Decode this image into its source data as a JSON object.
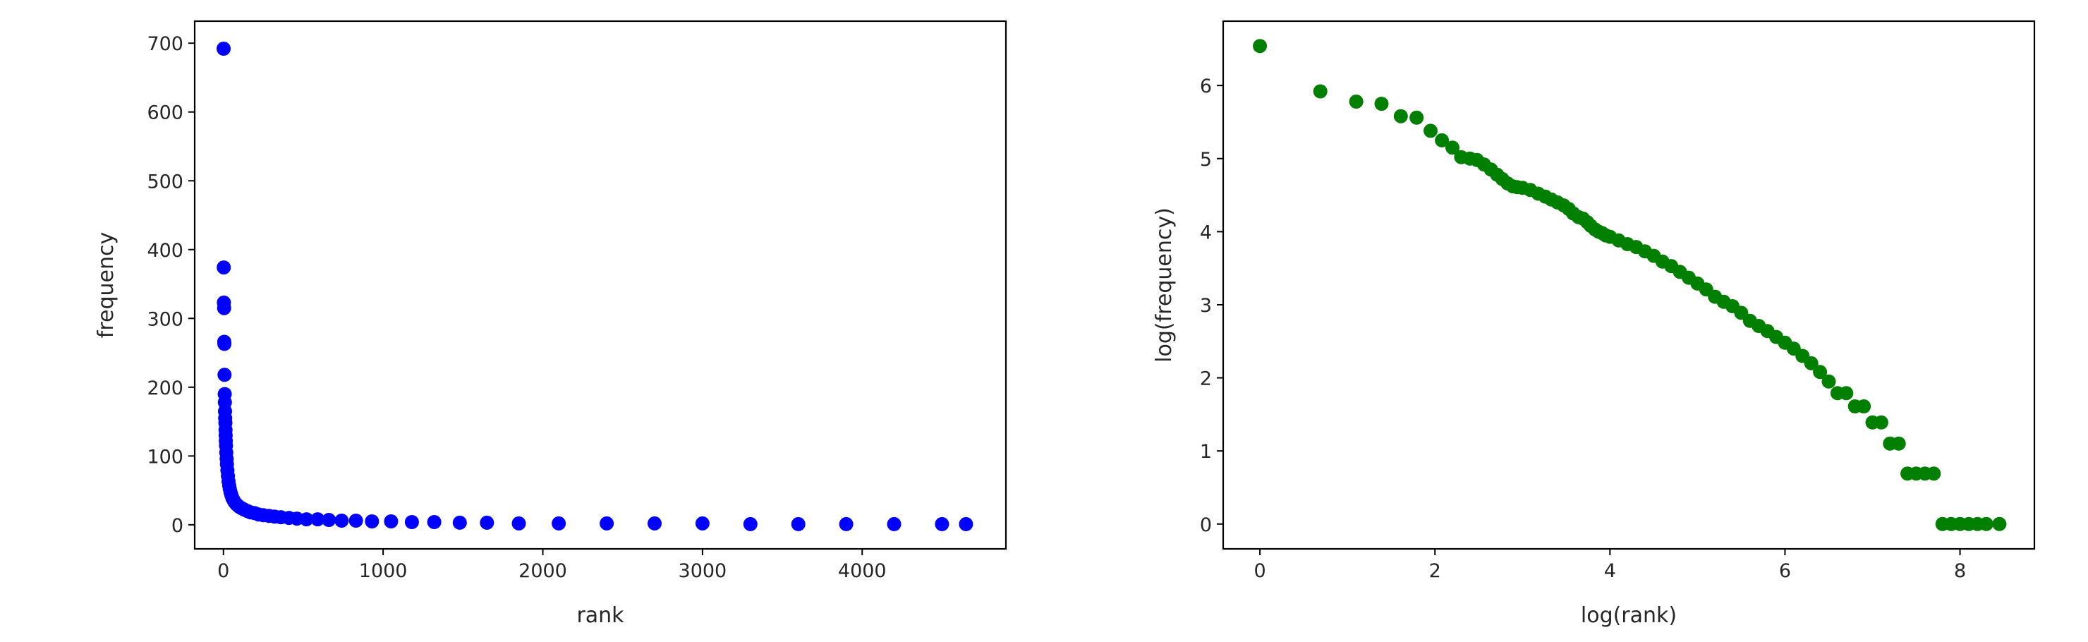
{
  "chart_data": [
    {
      "type": "scatter",
      "xlabel": "rank",
      "ylabel": "frequency",
      "xlim": [
        -180,
        4900
      ],
      "ylim": [
        -35,
        732
      ],
      "xticks": [
        0,
        1000,
        2000,
        3000,
        4000
      ],
      "yticks": [
        0,
        100,
        200,
        300,
        400,
        500,
        600,
        700
      ],
      "xtick_labels": [
        "0",
        "1000",
        "2000",
        "3000",
        "4000"
      ],
      "ytick_labels": [
        "0",
        "100",
        "200",
        "300",
        "400",
        "500",
        "600",
        "700"
      ],
      "color": "#0000ff",
      "grid": false,
      "legend": "none",
      "x": [
        1,
        2,
        3,
        4,
        5,
        6,
        7,
        8,
        9,
        10,
        11,
        12,
        13,
        14,
        15,
        16,
        18,
        20,
        22,
        25,
        28,
        32,
        36,
        40,
        45,
        50,
        56,
        63,
        70,
        80,
        90,
        100,
        115,
        130,
        150,
        170,
        195,
        220,
        250,
        285,
        320,
        360,
        410,
        460,
        520,
        590,
        660,
        740,
        830,
        930,
        1050,
        1180,
        1320,
        1480,
        1650,
        1850,
        2100,
        2400,
        2700,
        3000,
        3300,
        3600,
        3900,
        4200,
        4500,
        4650
      ],
      "y": [
        692,
        374,
        323,
        315,
        266,
        263,
        218,
        190,
        178,
        165,
        155,
        148,
        138,
        130,
        122,
        115,
        105,
        96,
        88,
        79,
        71,
        63,
        57,
        52,
        47,
        43,
        39,
        36,
        33,
        30,
        28,
        26,
        24,
        22,
        20,
        18,
        17,
        15,
        14,
        13,
        12,
        11,
        10,
        9,
        8,
        8,
        7,
        6,
        6,
        5,
        5,
        4,
        4,
        3,
        3,
        2,
        2,
        2,
        2,
        2,
        1,
        1,
        1,
        1,
        1,
        1
      ]
    },
    {
      "type": "scatter",
      "xlabel": "log(rank)",
      "ylabel": "log(frequency)",
      "xlim": [
        -0.42,
        8.85
      ],
      "ylim": [
        -0.34,
        6.88
      ],
      "xticks": [
        0,
        2,
        4,
        6,
        8
      ],
      "yticks": [
        0,
        1,
        2,
        3,
        4,
        5,
        6
      ],
      "xtick_labels": [
        "0",
        "2",
        "4",
        "6",
        "8"
      ],
      "ytick_labels": [
        "0",
        "1",
        "2",
        "3",
        "4",
        "5",
        "6"
      ],
      "color": "#007f00",
      "grid": false,
      "legend": "none",
      "x": [
        0.0,
        0.69,
        1.1,
        1.39,
        1.61,
        1.79,
        1.95,
        2.08,
        2.2,
        2.3,
        2.4,
        2.48,
        2.56,
        2.64,
        2.71,
        2.77,
        2.83,
        2.89,
        2.94,
        3.0,
        3.09,
        3.18,
        3.26,
        3.33,
        3.4,
        3.47,
        3.53,
        3.58,
        3.64,
        3.69,
        3.74,
        3.78,
        3.83,
        3.87,
        3.91,
        3.95,
        4.0,
        4.1,
        4.2,
        4.3,
        4.4,
        4.5,
        4.6,
        4.7,
        4.8,
        4.9,
        5.0,
        5.1,
        5.2,
        5.3,
        5.4,
        5.5,
        5.6,
        5.7,
        5.8,
        5.9,
        6.0,
        6.1,
        6.2,
        6.3,
        6.4,
        6.5,
        6.6,
        6.7,
        6.8,
        6.9,
        7.0,
        7.1,
        7.2,
        7.3,
        7.4,
        7.5,
        7.6,
        7.7,
        7.8,
        7.9,
        8.0,
        8.1,
        8.2,
        8.3,
        8.45
      ],
      "y": [
        6.54,
        5.92,
        5.78,
        5.75,
        5.58,
        5.56,
        5.38,
        5.25,
        5.15,
        5.02,
        5.0,
        4.98,
        4.92,
        4.85,
        4.78,
        4.72,
        4.66,
        4.62,
        4.61,
        4.6,
        4.57,
        4.52,
        4.48,
        4.44,
        4.4,
        4.36,
        4.31,
        4.25,
        4.2,
        4.18,
        4.13,
        4.08,
        4.03,
        4.0,
        3.98,
        3.95,
        3.93,
        3.88,
        3.83,
        3.79,
        3.73,
        3.67,
        3.59,
        3.53,
        3.45,
        3.37,
        3.29,
        3.21,
        3.11,
        3.04,
        2.98,
        2.89,
        2.78,
        2.71,
        2.64,
        2.56,
        2.48,
        2.4,
        2.3,
        2.2,
        2.08,
        1.95,
        1.79,
        1.79,
        1.61,
        1.61,
        1.39,
        1.39,
        1.1,
        1.1,
        0.69,
        0.69,
        0.69,
        0.69,
        0.0,
        0.0,
        0.0,
        0.0,
        0.0,
        0.0,
        0.0
      ]
    }
  ]
}
